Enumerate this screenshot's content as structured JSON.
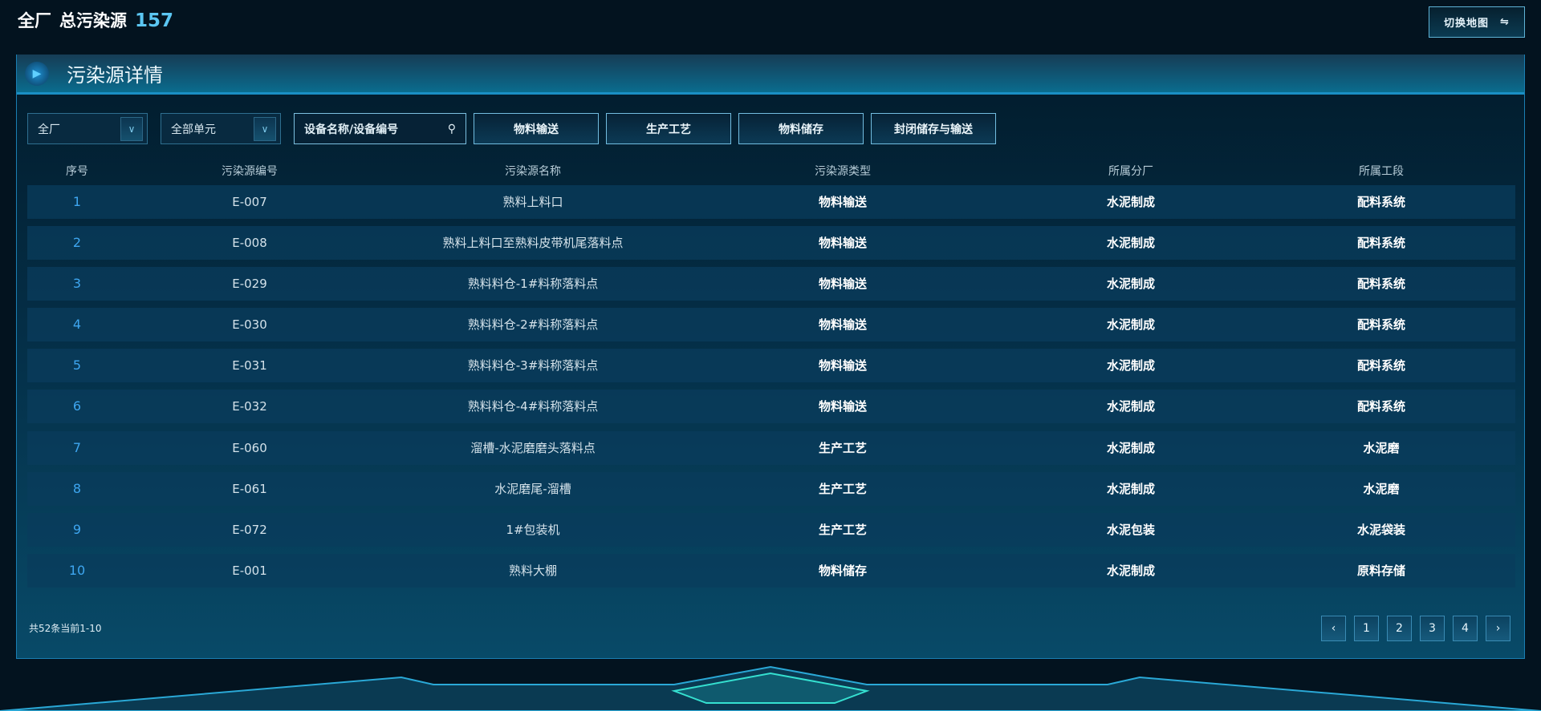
{
  "header": {
    "scope": "全厂",
    "label": "总污染源",
    "count": "157",
    "switch_map": "切换地图",
    "switch_icon": "⇋"
  },
  "panel": {
    "title": "污染源详情"
  },
  "filters": {
    "plant": "全厂",
    "unit": "全部单元",
    "search_placeholder": "设备名称/设备编号",
    "buttons": [
      "物料输送",
      "生产工艺",
      "物料储存",
      "封闭储存与输送"
    ]
  },
  "table": {
    "columns": [
      "序号",
      "污染源编号",
      "污染源名称",
      "污染源类型",
      "所属分厂",
      "所属工段"
    ],
    "rows": [
      [
        "1",
        "E-007",
        "熟料上料口",
        "物料输送",
        "水泥制成",
        "配料系统"
      ],
      [
        "2",
        "E-008",
        "熟料上料口至熟料皮带机尾落料点",
        "物料输送",
        "水泥制成",
        "配料系统"
      ],
      [
        "3",
        "E-029",
        "熟料料仓-1#料称落料点",
        "物料输送",
        "水泥制成",
        "配料系统"
      ],
      [
        "4",
        "E-030",
        "熟料料仓-2#料称落料点",
        "物料输送",
        "水泥制成",
        "配料系统"
      ],
      [
        "5",
        "E-031",
        "熟料料仓-3#料称落料点",
        "物料输送",
        "水泥制成",
        "配料系统"
      ],
      [
        "6",
        "E-032",
        "熟料料仓-4#料称落料点",
        "物料输送",
        "水泥制成",
        "配料系统"
      ],
      [
        "7",
        "E-060",
        "溜槽-水泥磨磨头落料点",
        "生产工艺",
        "水泥制成",
        "水泥磨"
      ],
      [
        "8",
        "E-061",
        "水泥磨尾-溜槽",
        "生产工艺",
        "水泥制成",
        "水泥磨"
      ],
      [
        "9",
        "E-072",
        "1#包装机",
        "生产工艺",
        "水泥包装",
        "水泥袋装"
      ],
      [
        "10",
        "E-001",
        "熟料大棚",
        "物料储存",
        "水泥制成",
        "原料存储"
      ]
    ]
  },
  "pagination": {
    "summary": "共52条当前1-10",
    "prev": "‹",
    "pages": [
      "1",
      "2",
      "3",
      "4"
    ],
    "next": "›"
  }
}
